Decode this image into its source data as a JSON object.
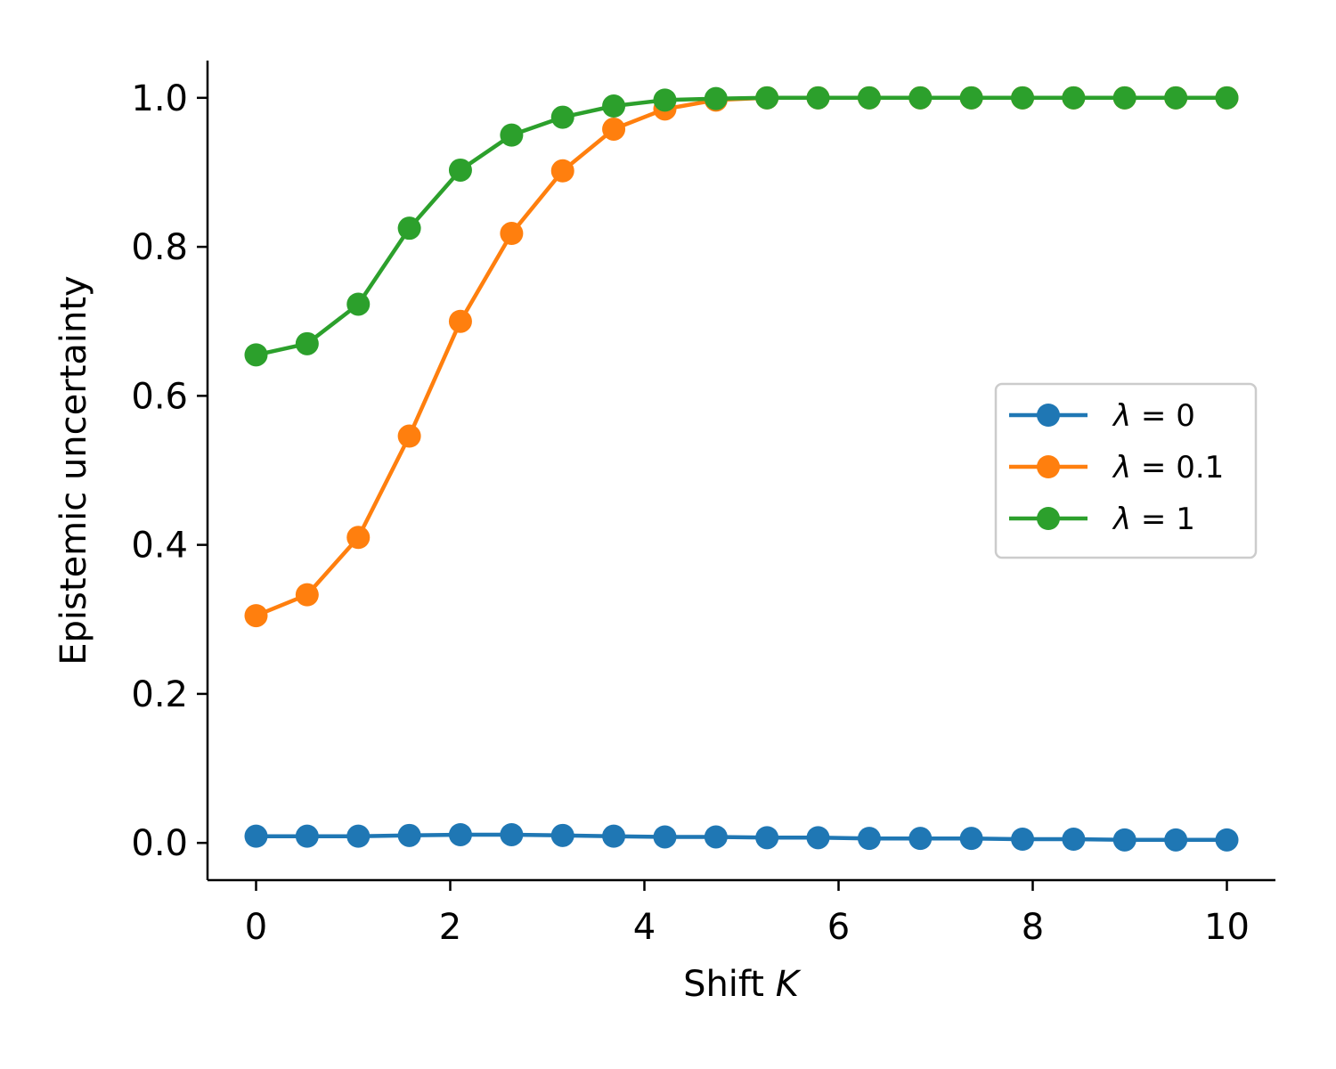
{
  "chart_data": {
    "type": "line",
    "xlabel_prefix": "Shift ",
    "xlabel_var": "K",
    "ylabel": "Epistemic uncertainty",
    "xlim": [
      -0.5,
      10.5
    ],
    "ylim": [
      -0.05,
      1.05
    ],
    "xticks": [
      0,
      2,
      4,
      6,
      8,
      10
    ],
    "xtick_labels": [
      "0",
      "2",
      "4",
      "6",
      "8",
      "10"
    ],
    "yticks": [
      0.0,
      0.2,
      0.4,
      0.6,
      0.8,
      1.0
    ],
    "ytick_labels": [
      "0.0",
      "0.2",
      "0.4",
      "0.6",
      "0.8",
      "1.0"
    ],
    "grid": false,
    "legend_position": "center-right",
    "x": [
      0,
      0.526,
      1.053,
      1.579,
      2.105,
      2.632,
      3.158,
      3.684,
      4.211,
      4.737,
      5.263,
      5.789,
      6.316,
      6.842,
      7.368,
      7.895,
      8.421,
      8.947,
      9.474,
      10
    ],
    "series": [
      {
        "name": "λ = 0",
        "legend_var": "λ",
        "legend_rest": " = 0",
        "color": "#1f77b4",
        "values": [
          0.009,
          0.009,
          0.009,
          0.01,
          0.011,
          0.011,
          0.01,
          0.009,
          0.008,
          0.008,
          0.007,
          0.007,
          0.006,
          0.006,
          0.006,
          0.005,
          0.005,
          0.004,
          0.004,
          0.004
        ]
      },
      {
        "name": "λ = 0.1",
        "legend_var": "λ",
        "legend_rest": " = 0.1",
        "color": "#ff7f0e",
        "values": [
          0.305,
          0.333,
          0.41,
          0.546,
          0.7,
          0.818,
          0.902,
          0.958,
          0.985,
          0.997,
          1.0,
          1.0,
          1.0,
          1.0,
          1.0,
          1.0,
          1.0,
          1.0,
          1.0,
          1.0
        ]
      },
      {
        "name": "λ = 1",
        "legend_var": "λ",
        "legend_rest": " = 1",
        "color": "#2ca02c",
        "values": [
          0.655,
          0.67,
          0.723,
          0.825,
          0.903,
          0.95,
          0.974,
          0.989,
          0.997,
          0.999,
          1.0,
          1.0,
          1.0,
          1.0,
          1.0,
          1.0,
          1.0,
          1.0,
          1.0,
          1.0
        ]
      }
    ]
  }
}
